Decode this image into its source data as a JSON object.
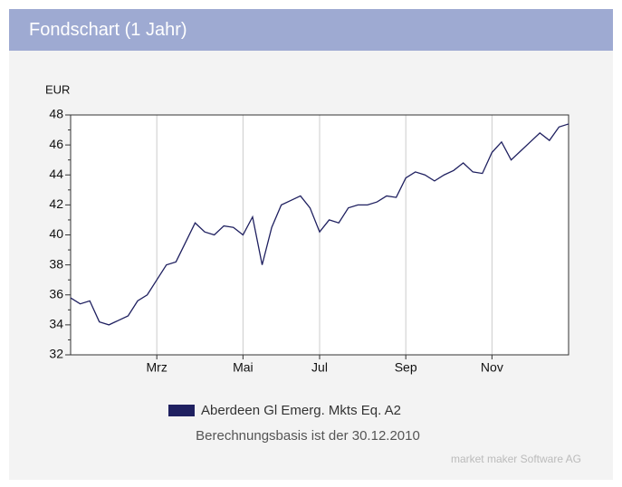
{
  "header": {
    "title": "Fondschart (1 Jahr)"
  },
  "chart_data": {
    "type": "line",
    "y_label": "EUR",
    "categories": [
      null,
      null,
      null,
      null,
      null,
      null,
      null,
      null,
      null,
      "Mrz",
      null,
      null,
      null,
      null,
      null,
      null,
      null,
      null,
      "Mai",
      null,
      null,
      null,
      null,
      null,
      null,
      null,
      "Jul",
      null,
      null,
      null,
      null,
      null,
      null,
      null,
      null,
      "Sep",
      null,
      null,
      null,
      null,
      null,
      null,
      null,
      null,
      "Nov",
      null,
      null,
      null,
      null,
      null,
      null,
      null,
      null
    ],
    "series": [
      {
        "name": "Aberdeen Gl Emerg. Mkts Eq. A2",
        "color": "#1f2060",
        "values": [
          35.8,
          35.4,
          35.6,
          34.2,
          34.0,
          34.3,
          34.6,
          35.6,
          36.0,
          37.0,
          38.0,
          38.2,
          39.5,
          40.8,
          40.2,
          40.0,
          40.6,
          40.5,
          40.0,
          41.2,
          38.0,
          40.5,
          42.0,
          42.3,
          42.6,
          41.8,
          40.2,
          41.0,
          40.8,
          41.8,
          42.0,
          42.0,
          42.2,
          42.6,
          42.5,
          43.8,
          44.2,
          44.0,
          43.6,
          44.0,
          44.3,
          44.8,
          44.2,
          44.1,
          45.5,
          46.2,
          45.0,
          45.6,
          46.2,
          46.8,
          46.3,
          47.2,
          47.4
        ]
      }
    ],
    "ylim": [
      32,
      48
    ],
    "yticks": [
      32,
      34,
      36,
      38,
      40,
      42,
      44,
      46,
      48
    ],
    "grid": true,
    "note": "Berechnungsbasis ist der 30.12.2010",
    "credit": "market maker Software AG"
  }
}
